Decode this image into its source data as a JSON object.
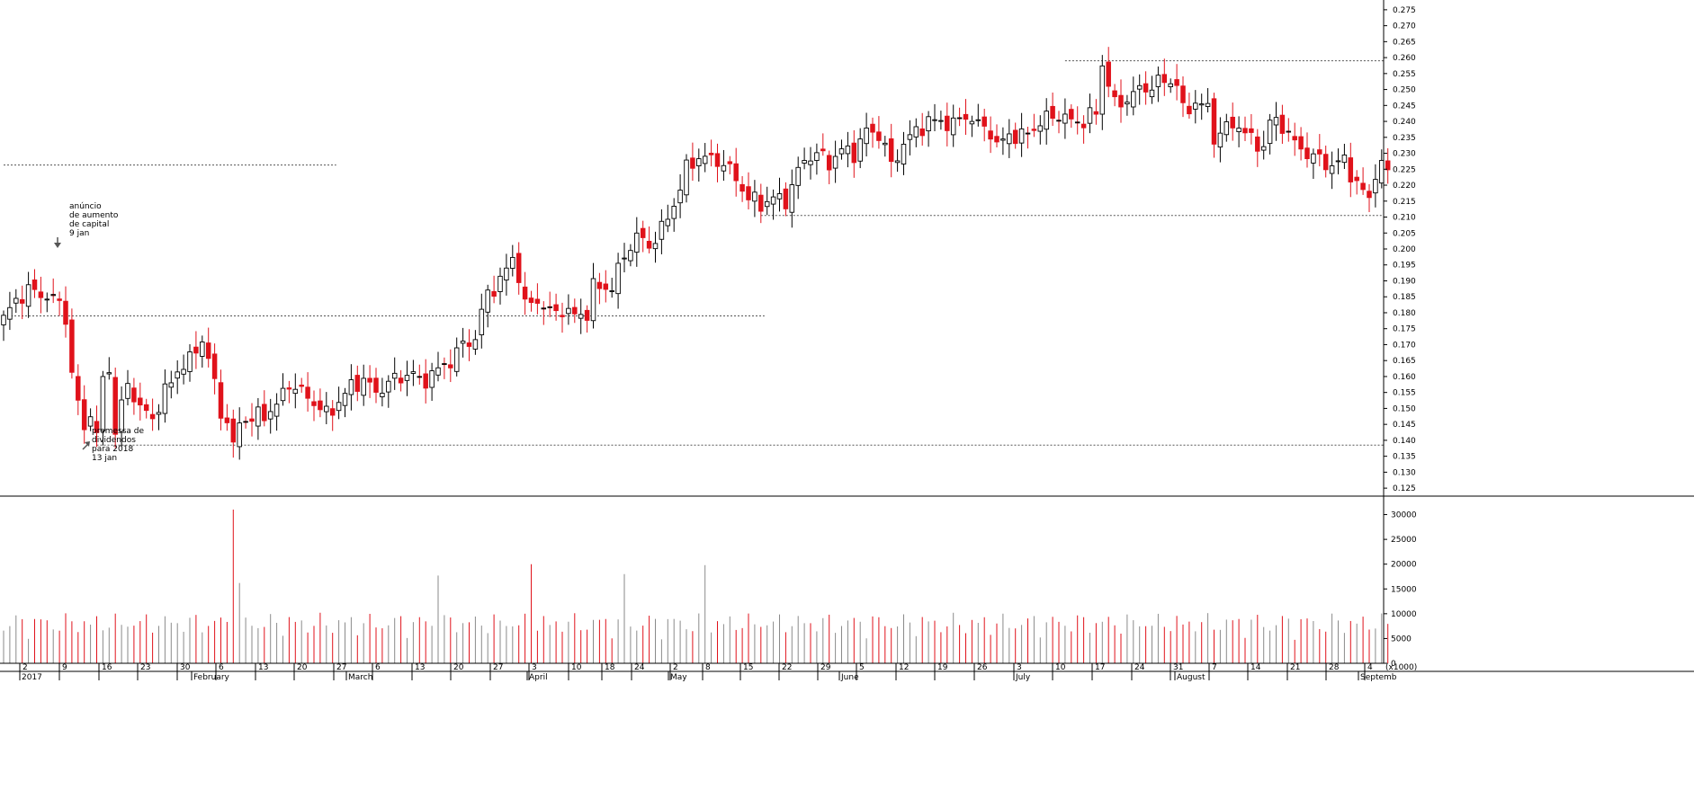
{
  "chart_data": {
    "type": "candlestick",
    "price_axis": {
      "ylim": [
        0.1225,
        0.2775
      ],
      "ticks": [
        "0.275",
        "0.270",
        "0.265",
        "0.260",
        "0.255",
        "0.250",
        "0.245",
        "0.240",
        "0.235",
        "0.230",
        "0.225",
        "0.220",
        "0.215",
        "0.210",
        "0.205",
        "0.200",
        "0.195",
        "0.190",
        "0.185",
        "0.180",
        "0.175",
        "0.170",
        "0.165",
        "0.160",
        "0.155",
        "0.150",
        "0.145",
        "0.140",
        "0.135",
        "0.130",
        "0.125"
      ]
    },
    "volume_axis": {
      "ylim": [
        0,
        33000
      ],
      "ticks": [
        "30000",
        "25000",
        "20000",
        "15000",
        "10000",
        "5000",
        "0"
      ],
      "unit_label": "(x1000)"
    },
    "x_axis": {
      "day_ticks": [
        "2",
        "9",
        "16",
        "23",
        "30",
        "6",
        "13",
        "20",
        "27",
        "6",
        "13",
        "20",
        "27",
        "3",
        "10",
        "18",
        "24",
        "2",
        "8",
        "15",
        "22",
        "29",
        "5",
        "12",
        "19",
        "26",
        "3",
        "10",
        "17",
        "24",
        "31",
        "7",
        "14",
        "21",
        "28",
        "4"
      ],
      "month_labels": [
        "2017",
        "February",
        "March",
        "April",
        "May",
        "June",
        "July",
        "August",
        "Septemb"
      ]
    },
    "reference_levels": [
      {
        "y": 0.2263,
        "from_bar": 0,
        "to_bar": 53
      },
      {
        "y": 0.179,
        "from_bar": 0,
        "to_bar": 122
      },
      {
        "y": 0.1385,
        "from_bar": 15,
        "to_bar": 223
      },
      {
        "y": 0.2105,
        "from_bar": 122,
        "to_bar": 223
      },
      {
        "y": 0.259,
        "from_bar": 171,
        "to_bar": 223
      }
    ],
    "annotations": [
      {
        "lines": [
          "anúncio",
          "de aumento",
          "de capital",
          "9 jan"
        ],
        "arrow": "down",
        "bar": 9,
        "y": 0.192
      },
      {
        "lines": [
          "promessa de",
          "dividendos",
          "para 2018",
          "13 jan"
        ],
        "arrow": "up-right",
        "bar": 13,
        "y": 0.136
      }
    ],
    "grid": false,
    "legend": "none",
    "colors": {
      "up": "#ffffff",
      "down": "#e0121b",
      "doji": "#000000",
      "volume_up": "#8a8a8a",
      "volume_down": "#e0121b"
    }
  }
}
